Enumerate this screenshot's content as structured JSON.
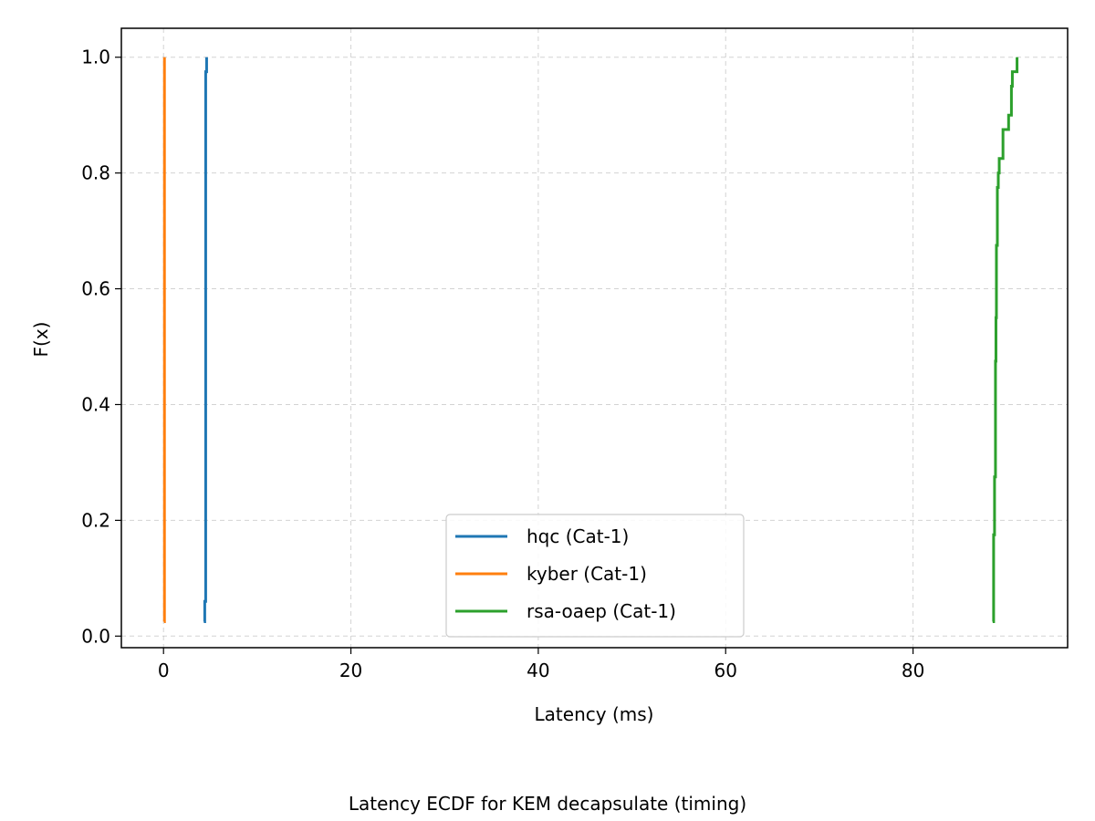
{
  "chart_data": {
    "type": "line",
    "subtype": "ecdf-step",
    "caption": "Latency ECDF for KEM decapsulate (timing)",
    "xlabel": "Latency (ms)",
    "ylabel": "F(x)",
    "xlim": [
      -4.5,
      96.5
    ],
    "ylim": [
      -0.02,
      1.05
    ],
    "xticks": [
      0,
      20,
      40,
      60,
      80
    ],
    "yticks": [
      0.0,
      0.2,
      0.4,
      0.6,
      0.8,
      1.0
    ],
    "xtick_labels": [
      "0",
      "20",
      "40",
      "60",
      "80"
    ],
    "ytick_labels": [
      "0.0",
      "0.2",
      "0.4",
      "0.6",
      "0.8",
      "1.0"
    ],
    "grid": true,
    "legend_position": "bottom-center",
    "series": [
      {
        "name": "hqc (Cat-1)",
        "color": "#1f77b4",
        "x": [
          4.3,
          4.4,
          4.5,
          4.5,
          4.6
        ],
        "y": [
          0.025,
          0.06,
          0.5,
          0.975,
          1.0
        ]
      },
      {
        "name": "kyber (Cat-1)",
        "color": "#ff7f0e",
        "x": [
          0.05,
          0.1
        ],
        "y": [
          0.025,
          1.0
        ]
      },
      {
        "name": "rsa-oaep (Cat-1)",
        "color": "#2ca02c",
        "x": [
          88.5,
          88.6,
          88.7,
          88.8,
          88.85,
          88.9,
          89.0,
          89.1,
          89.2,
          89.6,
          90.2,
          90.5,
          90.6,
          90.9,
          91.1
        ],
        "y": [
          0.025,
          0.175,
          0.275,
          0.475,
          0.55,
          0.675,
          0.775,
          0.8,
          0.825,
          0.875,
          0.9,
          0.95,
          0.975,
          0.975,
          1.0
        ]
      }
    ]
  }
}
